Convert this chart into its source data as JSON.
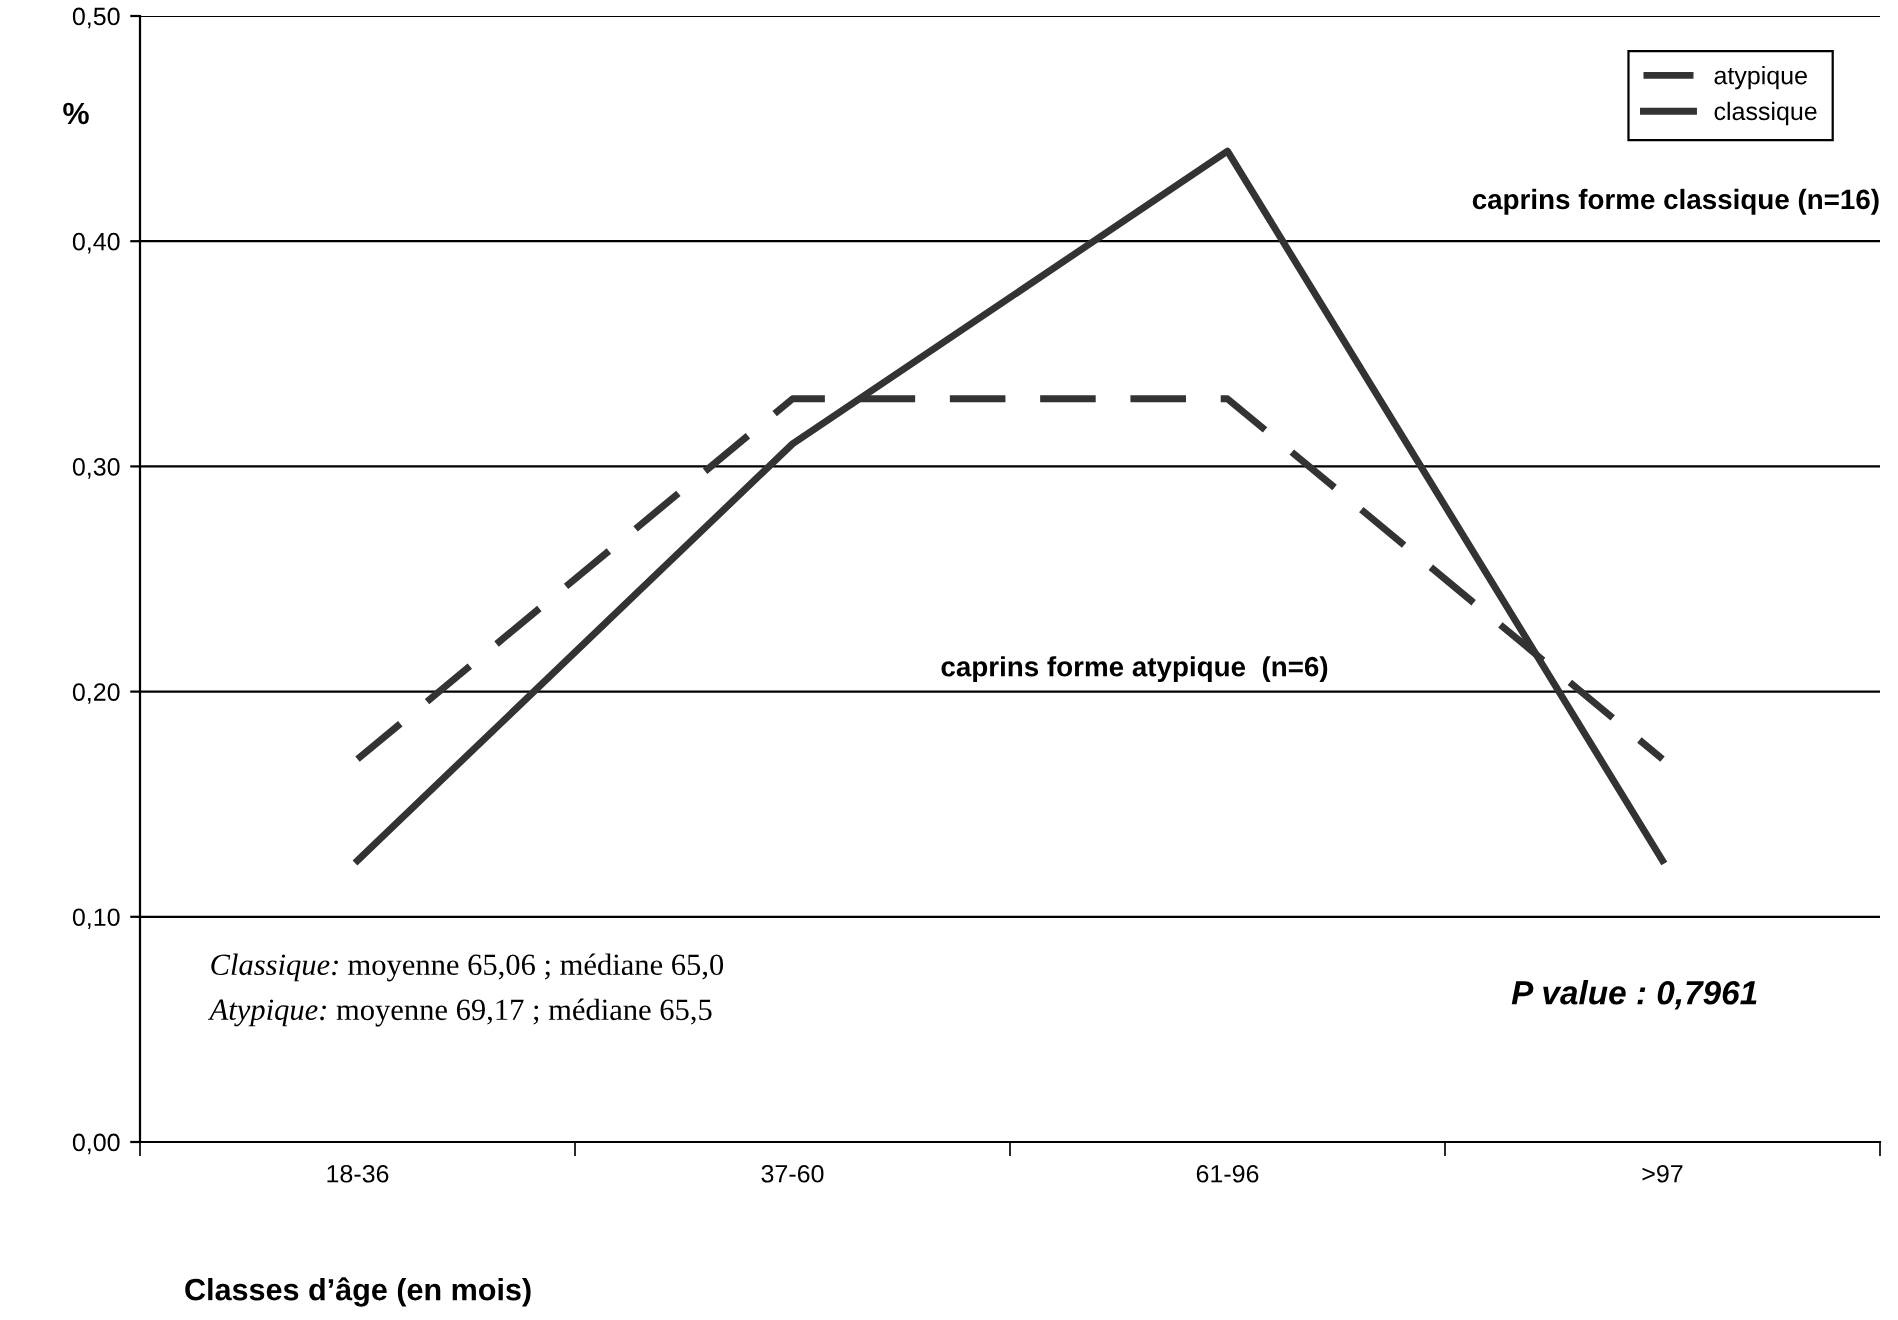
{
  "chart_data": {
    "type": "line",
    "ylabel": "%",
    "xlabel": "Classes d’âge (en mois)",
    "categories": [
      "18-36",
      "37-60",
      "61-96",
      ">97"
    ],
    "series": [
      {
        "name": "atypique",
        "color": "#333333",
        "line_style": "dashed",
        "values": [
          0.17,
          0.33,
          0.33,
          0.17
        ]
      },
      {
        "name": "classique",
        "color": "#333333",
        "line_style": "solid",
        "values": [
          0.125,
          0.31,
          0.44,
          0.125
        ]
      }
    ],
    "ylim": [
      0,
      0.5
    ],
    "yticks": [
      {
        "value": 0,
        "label": "0,00"
      },
      {
        "value": 0.1,
        "label": "0,10"
      },
      {
        "value": 0.2,
        "label": "0,20"
      },
      {
        "value": 0.3,
        "label": "0,30"
      },
      {
        "value": 0.4,
        "label": "0,40"
      },
      {
        "value": 0.5,
        "label": "0,50"
      }
    ],
    "grid": "y",
    "legend": "top right",
    "marker": "none",
    "annotations": [
      "caprins forme classique (n=16)",
      "caprins forme atypique  (n=6)",
      "Classique: moyenne 65,06 ; médiane 65,0",
      "Atypique: moyenne 69,17 ; médiane 65,5",
      "P value : 0,7961"
    ]
  }
}
